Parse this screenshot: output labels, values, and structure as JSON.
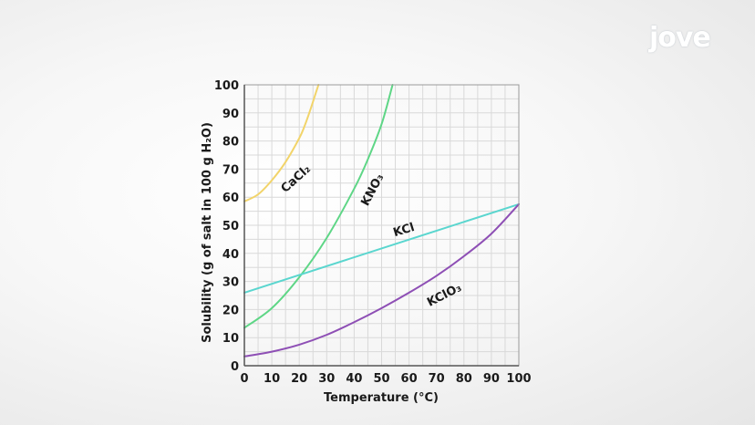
{
  "brand": {
    "logo_text": "jove"
  },
  "chart_data": {
    "type": "line",
    "title": "",
    "xlabel": "Temperature (°C)",
    "ylabel": "Solubility (g of salt in 100 g H₂O)",
    "xlim": [
      0,
      100
    ],
    "ylim": [
      0,
      100
    ],
    "x_ticks": [
      0,
      10,
      20,
      30,
      40,
      50,
      60,
      70,
      80,
      90,
      100
    ],
    "y_ticks": [
      0,
      10,
      20,
      30,
      40,
      50,
      60,
      70,
      80,
      90,
      100
    ],
    "grid": true,
    "series": [
      {
        "name": "CaCl₂",
        "color": "#f2d46a",
        "x": [
          0,
          5,
          10,
          15,
          20,
          22,
          24,
          26,
          27
        ],
        "y": [
          58.5,
          61,
          66,
          72.5,
          81,
          85.5,
          91,
          97,
          100
        ]
      },
      {
        "name": "KNO₃",
        "color": "#5ed686",
        "x": [
          0,
          10,
          20,
          30,
          40,
          45,
          50,
          54
        ],
        "y": [
          13.5,
          20.5,
          31.5,
          45.5,
          63,
          73.5,
          86,
          100
        ]
      },
      {
        "name": "KCl",
        "color": "#5ad6cf",
        "x": [
          0,
          100
        ],
        "y": [
          26,
          57.5
        ]
      },
      {
        "name": "KClO₃",
        "color": "#8e4fb5",
        "x": [
          0,
          10,
          20,
          30,
          40,
          50,
          60,
          70,
          80,
          90,
          100
        ],
        "y": [
          3.3,
          5,
          7.5,
          11,
          15.5,
          20.5,
          26,
          32,
          39,
          47,
          57.5
        ]
      }
    ]
  }
}
